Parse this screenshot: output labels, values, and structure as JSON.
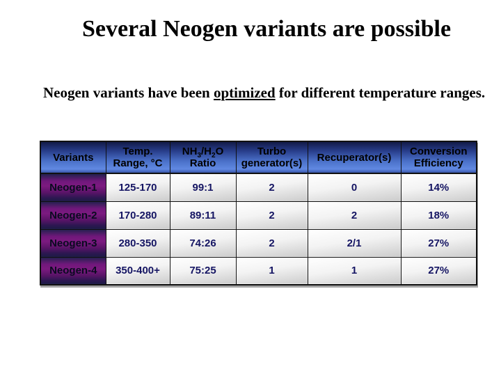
{
  "slide": {
    "title": "Several Neogen variants are possible",
    "subtitle": {
      "pre": "Neogen variants have been ",
      "underlined": "optimized",
      "post": " for different temperature ranges."
    }
  },
  "table": {
    "columns": [
      {
        "id": "variants",
        "lines": [
          "Variants"
        ]
      },
      {
        "id": "temp-range",
        "lines": [
          "Temp.",
          "Range, °C"
        ]
      },
      {
        "id": "nh3-h2o-ratio",
        "lines": [
          {
            "parts": [
              {
                "t": "NH"
              },
              {
                "t": "3",
                "sub": true
              },
              {
                "t": "/H"
              },
              {
                "t": "2",
                "sub": true
              },
              {
                "t": "O"
              }
            ]
          },
          {
            "parts": [
              {
                "t": "Ratio"
              }
            ]
          }
        ]
      },
      {
        "id": "turbo-generators",
        "lines": [
          "Turbo",
          "generator(s)"
        ]
      },
      {
        "id": "recuperators",
        "lines": [
          "Recuperator(s)"
        ]
      },
      {
        "id": "conversion-efficiency",
        "lines": [
          "Conversion",
          "Efficiency"
        ]
      }
    ],
    "rows": [
      {
        "cells": [
          "Neogen-1",
          "125-170",
          "99:1",
          "2",
          "0",
          "14%"
        ]
      },
      {
        "cells": [
          "Neogen-2",
          "170-280",
          "89:11",
          "2",
          "2",
          "18%"
        ]
      },
      {
        "cells": [
          "Neogen-3",
          "280-350",
          "74:26",
          "2",
          "2/1",
          "27%"
        ]
      },
      {
        "cells": [
          "Neogen-4",
          "350-400+",
          "75:25",
          "1",
          "1",
          "27%"
        ]
      }
    ]
  },
  "colors": {
    "header_blue_top": "#121a47",
    "header_blue_mid": "#4a70c8",
    "header_blue_bright": "#6189e2",
    "row_purple": "#7c1a80",
    "row_purple_dark": "#1e1b47",
    "cell_text_navy": "#151563",
    "cell_gray": "#cccccc",
    "border_black": "#101010",
    "text_black": "#000000"
  }
}
